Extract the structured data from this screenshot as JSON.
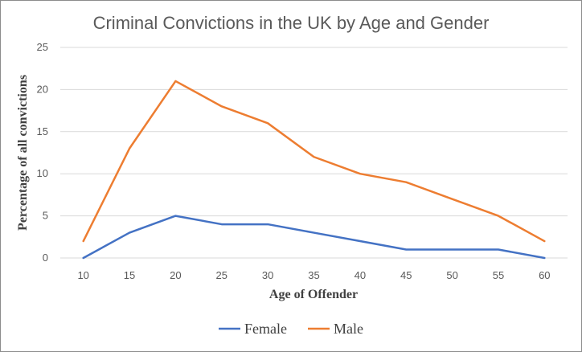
{
  "chart_data": {
    "type": "line",
    "title": "Criminal Convictions in the UK by Age and Gender",
    "xlabel": "Age of Offender",
    "ylabel": "Percentage of all convictions",
    "x": [
      10,
      15,
      20,
      25,
      30,
      35,
      40,
      45,
      50,
      55,
      60
    ],
    "ylim": [
      0,
      25
    ],
    "yticks": [
      0,
      5,
      10,
      15,
      20,
      25
    ],
    "grid": true,
    "legend": "bottom",
    "series": [
      {
        "name": "Female",
        "color": "#4472c4",
        "values": [
          0,
          3,
          5,
          4,
          4,
          3,
          2,
          1,
          1,
          1,
          0
        ]
      },
      {
        "name": "Male",
        "color": "#ed7d31",
        "values": [
          2,
          13,
          21,
          18,
          16,
          12,
          10,
          9,
          7,
          5,
          2
        ]
      }
    ]
  }
}
